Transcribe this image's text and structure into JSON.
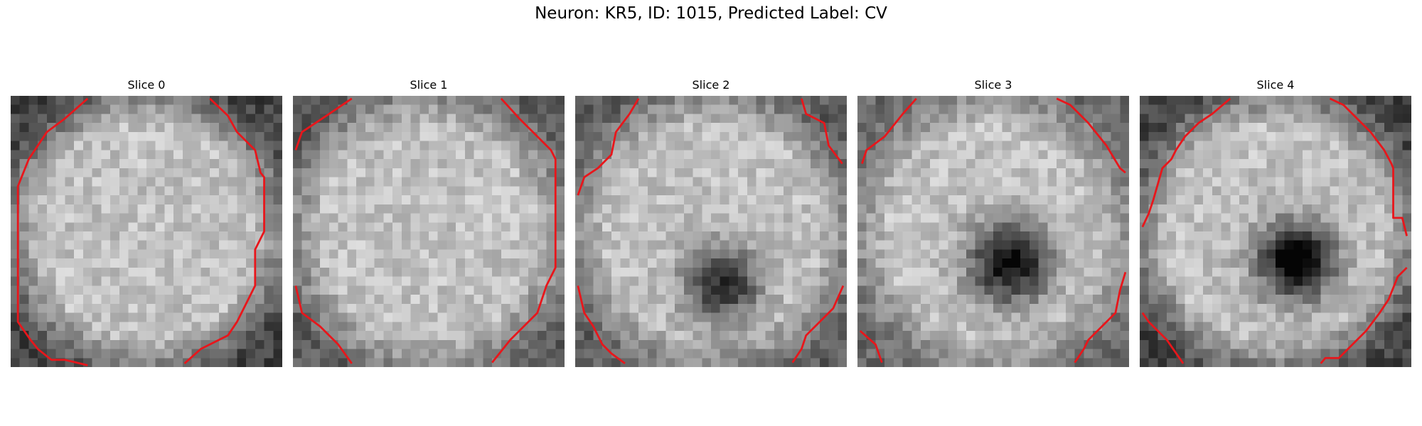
{
  "figure": {
    "title": "Neuron: KR5, ID: 1015, Predicted Label: CV"
  },
  "grid_size": 30,
  "contour_color": "#e8161b",
  "panels": [
    {
      "title": "Slice 0",
      "blob": null,
      "ring_strength": 0.45,
      "contours": [
        [
          [
            2.2,
            27.0
          ],
          [
            0.8,
            25.0
          ],
          [
            0.8,
            10.0
          ],
          [
            2.0,
            7.0
          ],
          [
            4.0,
            4.0
          ],
          [
            6.0,
            2.5
          ],
          [
            8.5,
            0.3
          ]
        ],
        [
          [
            22.0,
            0.3
          ],
          [
            24.0,
            2.2
          ],
          [
            25.0,
            4.0
          ],
          [
            27.0,
            6.0
          ],
          [
            27.6,
            8.5
          ],
          [
            28.0,
            9.0
          ],
          [
            28.0,
            15.0
          ],
          [
            27.0,
            17.0
          ],
          [
            27.0,
            21.0
          ],
          [
            26.0,
            23.0
          ],
          [
            25.0,
            25.0
          ],
          [
            24.0,
            26.5
          ],
          [
            22.0,
            27.5
          ],
          [
            21.0,
            28.0
          ],
          [
            19.2,
            29.6
          ]
        ],
        [
          [
            2.2,
            27.0
          ],
          [
            3.0,
            28.0
          ],
          [
            4.5,
            29.2
          ],
          [
            6.0,
            29.2
          ],
          [
            8.5,
            29.8
          ]
        ]
      ]
    },
    {
      "title": "Slice 1",
      "blob": null,
      "ring_strength": 0.35,
      "contours": [
        [
          [
            0.3,
            6.0
          ],
          [
            1.0,
            4.0
          ],
          [
            2.5,
            3.0
          ],
          [
            4.0,
            2.0
          ],
          [
            6.5,
            0.3
          ]
        ],
        [
          [
            23.0,
            0.3
          ],
          [
            25.0,
            2.5
          ],
          [
            27.0,
            4.5
          ],
          [
            28.5,
            6.0
          ],
          [
            29.0,
            7.0
          ],
          [
            29.0,
            19.0
          ],
          [
            28.0,
            21.0
          ],
          [
            27.0,
            24.0
          ],
          [
            25.0,
            26.0
          ],
          [
            24.0,
            27.0
          ],
          [
            22.0,
            29.5
          ]
        ],
        [
          [
            0.3,
            21.0
          ],
          [
            1.0,
            24.0
          ],
          [
            3.0,
            25.5
          ],
          [
            5.0,
            27.5
          ],
          [
            6.5,
            29.6
          ]
        ]
      ]
    },
    {
      "title": "Slice 2",
      "blob": {
        "cx": 16.3,
        "cy": 20.7,
        "r": 4.0,
        "depth": 0.6
      },
      "ring_strength": 0.35,
      "contours": [
        [
          [
            0.3,
            11.0
          ],
          [
            1.0,
            9.0
          ],
          [
            2.5,
            8.0
          ],
          [
            4.0,
            6.5
          ],
          [
            4.5,
            4.0
          ],
          [
            6.0,
            2.0
          ],
          [
            7.0,
            0.3
          ]
        ],
        [
          [
            25.0,
            0.3
          ],
          [
            25.5,
            2.0
          ],
          [
            27.5,
            3.0
          ],
          [
            28.0,
            5.5
          ],
          [
            29.5,
            7.5
          ]
        ],
        [
          [
            0.3,
            21.0
          ],
          [
            1.0,
            24.0
          ],
          [
            2.0,
            25.5
          ],
          [
            3.0,
            27.5
          ],
          [
            4.0,
            28.5
          ],
          [
            5.5,
            29.6
          ]
        ],
        [
          [
            24.0,
            29.5
          ],
          [
            25.0,
            28.0
          ],
          [
            25.5,
            26.5
          ],
          [
            27.0,
            25.0
          ],
          [
            28.5,
            23.5
          ],
          [
            29.6,
            21.0
          ]
        ]
      ]
    },
    {
      "title": "Slice 3",
      "blob": {
        "cx": 16.8,
        "cy": 18.5,
        "r": 4.2,
        "depth": 0.75
      },
      "ring_strength": 0.3,
      "contours": [
        [
          [
            0.5,
            7.5
          ],
          [
            1.0,
            6.0
          ],
          [
            3.0,
            4.5
          ],
          [
            5.0,
            2.0
          ],
          [
            6.5,
            0.3
          ]
        ],
        [
          [
            22.0,
            0.3
          ],
          [
            23.5,
            1.0
          ],
          [
            25.5,
            3.0
          ],
          [
            27.5,
            5.5
          ],
          [
            29.0,
            8.0
          ],
          [
            29.6,
            8.5
          ]
        ],
        [
          [
            0.3,
            26.0
          ],
          [
            2.0,
            27.5
          ],
          [
            2.7,
            29.5
          ]
        ],
        [
          [
            24.0,
            29.5
          ],
          [
            25.0,
            28.0
          ],
          [
            25.5,
            27.0
          ],
          [
            27.0,
            25.5
          ],
          [
            28.5,
            24.0
          ],
          [
            29.0,
            21.5
          ],
          [
            29.6,
            19.5
          ]
        ]
      ]
    },
    {
      "title": "Slice 4",
      "blob": {
        "cx": 17.3,
        "cy": 18.3,
        "r": 4.0,
        "depth": 0.85
      },
      "ring_strength": 0.45,
      "contours": [
        [
          [
            0.3,
            14.5
          ],
          [
            1.0,
            13.0
          ],
          [
            1.5,
            11.5
          ],
          [
            2.5,
            8.0
          ],
          [
            3.5,
            7.0
          ],
          [
            4.0,
            6.0
          ],
          [
            5.0,
            4.5
          ],
          [
            6.5,
            3.0
          ],
          [
            8.0,
            2.0
          ],
          [
            10.0,
            0.3
          ]
        ],
        [
          [
            21.0,
            0.3
          ],
          [
            22.5,
            1.0
          ],
          [
            24.0,
            2.5
          ],
          [
            25.5,
            4.0
          ],
          [
            27.0,
            6.0
          ],
          [
            27.8,
            7.5
          ],
          [
            28.0,
            8.0
          ],
          [
            28.0,
            13.5
          ],
          [
            29.0,
            13.5
          ],
          [
            29.5,
            15.5
          ]
        ],
        [
          [
            0.3,
            24.0
          ],
          [
            1.0,
            25.0
          ],
          [
            3.0,
            27.0
          ],
          [
            4.8,
            29.6
          ]
        ],
        [
          [
            20.0,
            29.6
          ],
          [
            20.5,
            29.0
          ],
          [
            22.0,
            29.0
          ],
          [
            23.0,
            28.0
          ],
          [
            25.0,
            26.0
          ],
          [
            26.5,
            24.0
          ],
          [
            27.5,
            22.5
          ],
          [
            28.5,
            20.0
          ],
          [
            29.5,
            19.0
          ]
        ]
      ]
    }
  ]
}
